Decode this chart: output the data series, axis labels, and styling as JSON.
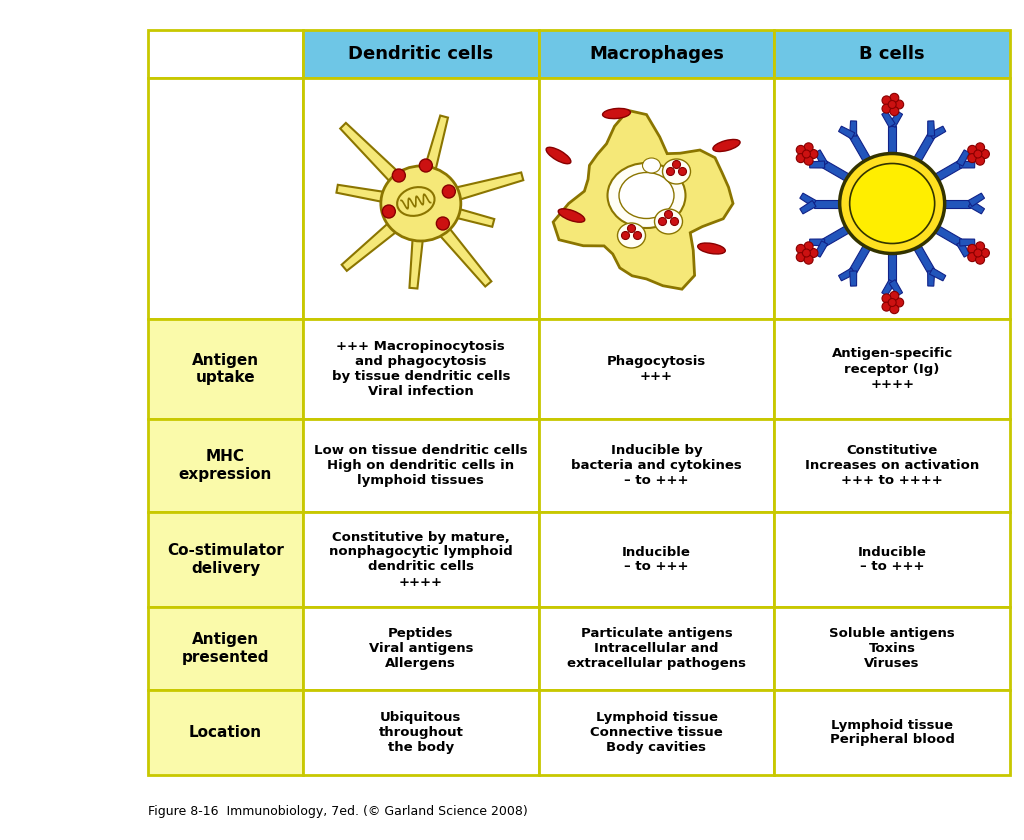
{
  "caption": "Figure 8-16  Immunobiology, 7ed. (© Garland Science 2008)",
  "col_headers": [
    "Dendritic cells",
    "Macrophages",
    "B cells"
  ],
  "row_headers": [
    "Antigen\nuptake",
    "MHC\nexpression",
    "Co-stimulator\ndelivery",
    "Antigen\npresented",
    "Location"
  ],
  "cells": [
    [
      "+++ Macropinocytosis\nand phagocytosis\nby tissue dendritic cells\nViral infection",
      "Phagocytosis\n+++",
      "Antigen-specific\nreceptor (Ig)\n++++"
    ],
    [
      "Low on tissue dendritic cells\nHigh on dendritic cells in\nlymphoid tissues",
      "Inducible by\nbacteria and cytokines\n– to +++",
      "Constitutive\nIncreases on activation\n+++ to ++++"
    ],
    [
      "Constitutive by mature,\nnonphagocytic lymphoid\ndendritic cells\n++++",
      "Inducible\n– to +++",
      "Inducible\n– to +++"
    ],
    [
      "Peptides\nViral antigens\nAllergens",
      "Particulate antigens\nIntracellular and\nextracellular pathogens",
      "Soluble antigens\nToxins\nViruses"
    ],
    [
      "Ubiquitous\nthroughout\nthe body",
      "Lymphoid tissue\nConnective tissue\nBody cavities",
      "Lymphoid tissue\nPeripheral blood"
    ]
  ],
  "header_bg": "#6EC6E6",
  "row_header_bg": "#FAFAAA",
  "cell_bg": "#FFFFFF",
  "border_color": "#C8C800",
  "yellow_light": "#FAFAB0",
  "cell_fill": "#FFFEF0",
  "dc_body_color": "#F5E878",
  "dc_edge_color": "#8B7500",
  "mac_body_color": "#F5E878",
  "mac_edge_color": "#8B7500",
  "bc_body_color": "#FFE020",
  "bc_edge_color": "#1a1a00",
  "bc_spike_color": "#2255BB",
  "red_dot_color": "#CC1111",
  "red_dot_edge": "#880000"
}
